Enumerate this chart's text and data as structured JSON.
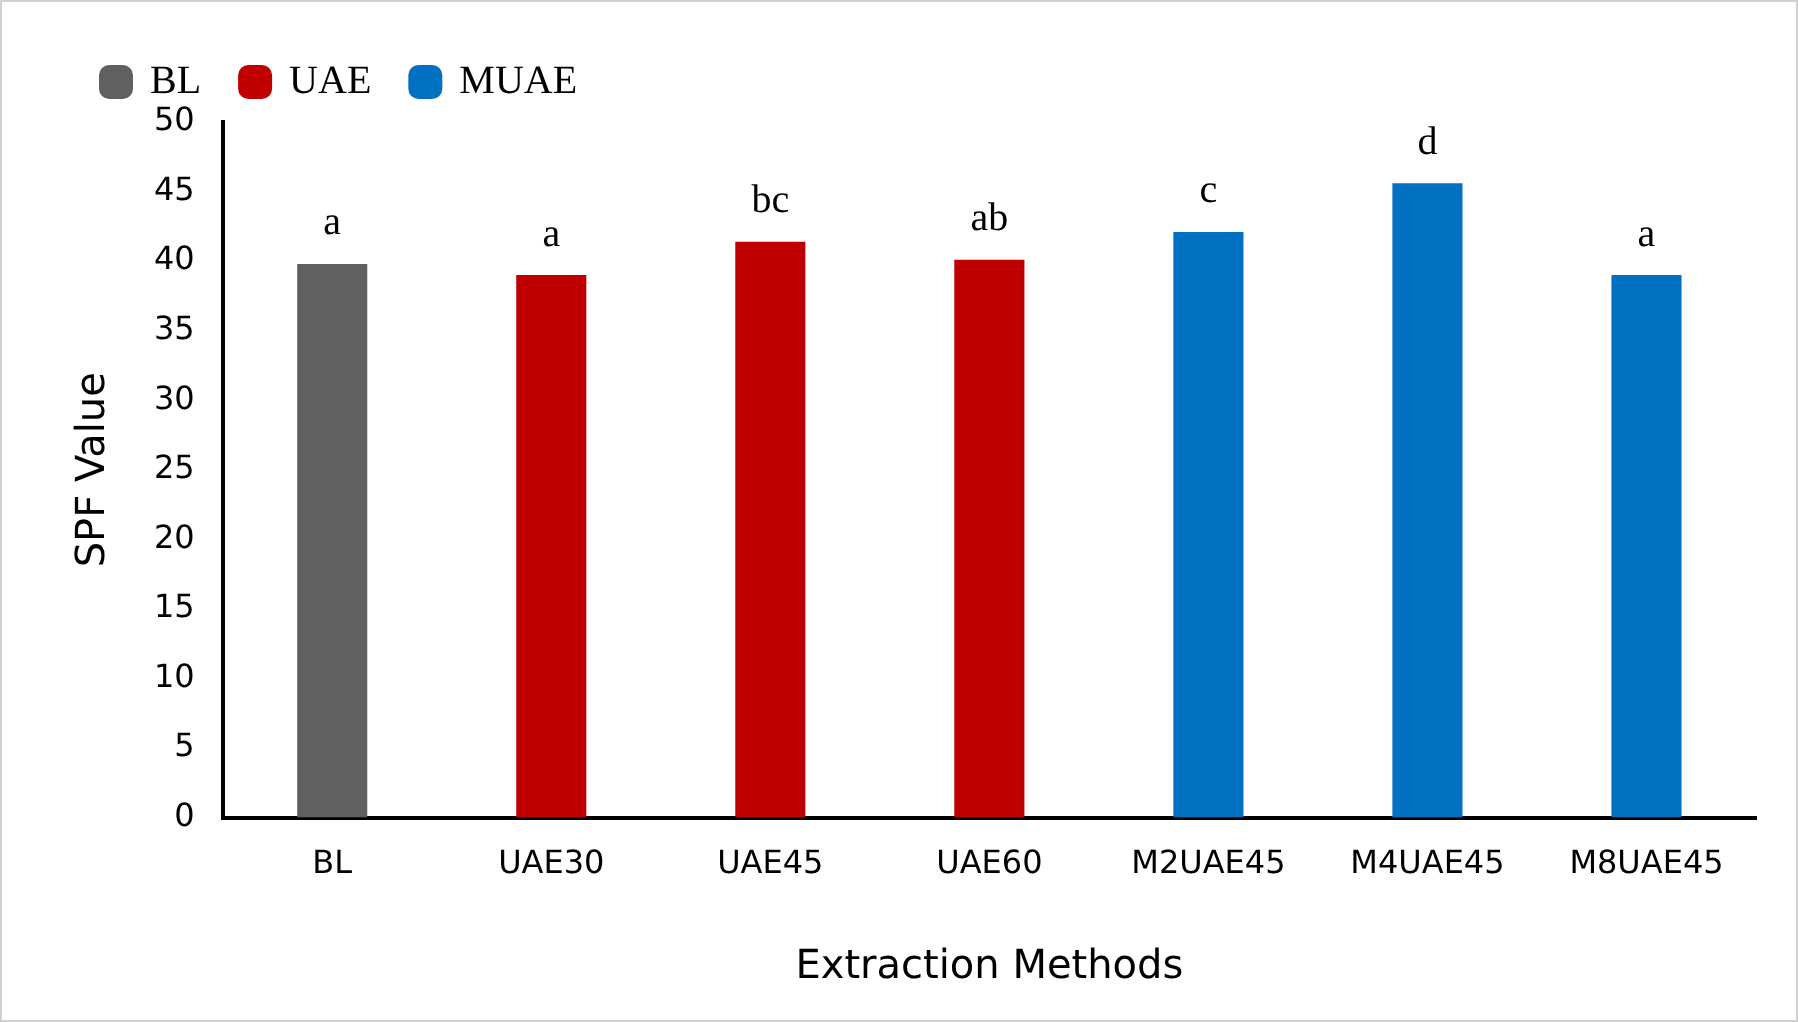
{
  "chart_data": {
    "type": "bar",
    "xlabel": "Extraction Methods",
    "ylabel": "SPF Value",
    "categories": [
      "BL",
      "UAE30",
      "UAE45",
      "UAE60",
      "M2UAE45",
      "M4UAE45",
      "M8UAE45"
    ],
    "series": [
      {
        "name": "BL",
        "color": "#606060",
        "values": [
          39.8,
          null,
          null,
          null,
          null,
          null,
          null
        ]
      },
      {
        "name": "UAE",
        "color": "#c00000",
        "values": [
          null,
          39.0,
          41.4,
          40.1,
          null,
          null,
          null
        ]
      },
      {
        "name": "MUAE",
        "color": "#0070c0",
        "values": [
          null,
          null,
          null,
          null,
          42.1,
          45.6,
          39.0
        ]
      }
    ],
    "ylim": [
      0,
      50
    ],
    "yticks": [
      0,
      5,
      10,
      15,
      20,
      25,
      30,
      35,
      40,
      45,
      50
    ],
    "grid": false,
    "legend": "top left",
    "annotations": [
      {
        "text": "a",
        "x": "BL",
        "y": 39.8
      },
      {
        "text": "a",
        "x": "UAE30",
        "y": 39.0
      },
      {
        "text": "bc",
        "x": "UAE45",
        "y": 41.4
      },
      {
        "text": "ab",
        "x": "UAE60",
        "y": 40.1
      },
      {
        "text": "c",
        "x": "M2UAE45",
        "y": 42.1
      },
      {
        "text": "d",
        "x": "M4UAE45",
        "y": 45.6
      },
      {
        "text": "a",
        "x": "M8UAE45",
        "y": 39.0
      }
    ]
  }
}
